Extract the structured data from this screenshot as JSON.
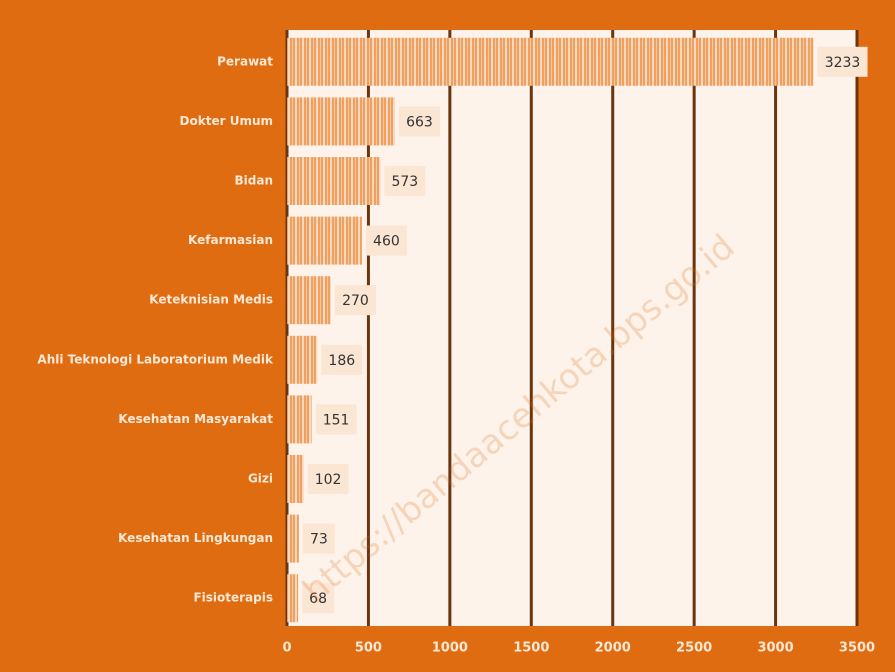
{
  "chart_data": {
    "type": "bar",
    "orientation": "horizontal",
    "categories": [
      "Perawat",
      "Dokter Umum",
      "Bidan",
      "Kefarmasian",
      "Keteknisian Medis",
      "Ahli Teknologi Laboratorium Medik",
      "Kesehatan Masyarakat",
      "Gizi",
      "Kesehatan Lingkungan",
      "Fisioterapis"
    ],
    "values": [
      3233,
      663,
      573,
      460,
      270,
      186,
      151,
      102,
      73,
      68
    ],
    "color": "#eea060",
    "xlim": [
      0,
      3500
    ],
    "xticks": [
      0,
      500,
      1000,
      1500,
      2000,
      2500,
      3000,
      3500
    ],
    "grid": true,
    "watermark": "https://bandaacehkota.bps.go.id"
  }
}
